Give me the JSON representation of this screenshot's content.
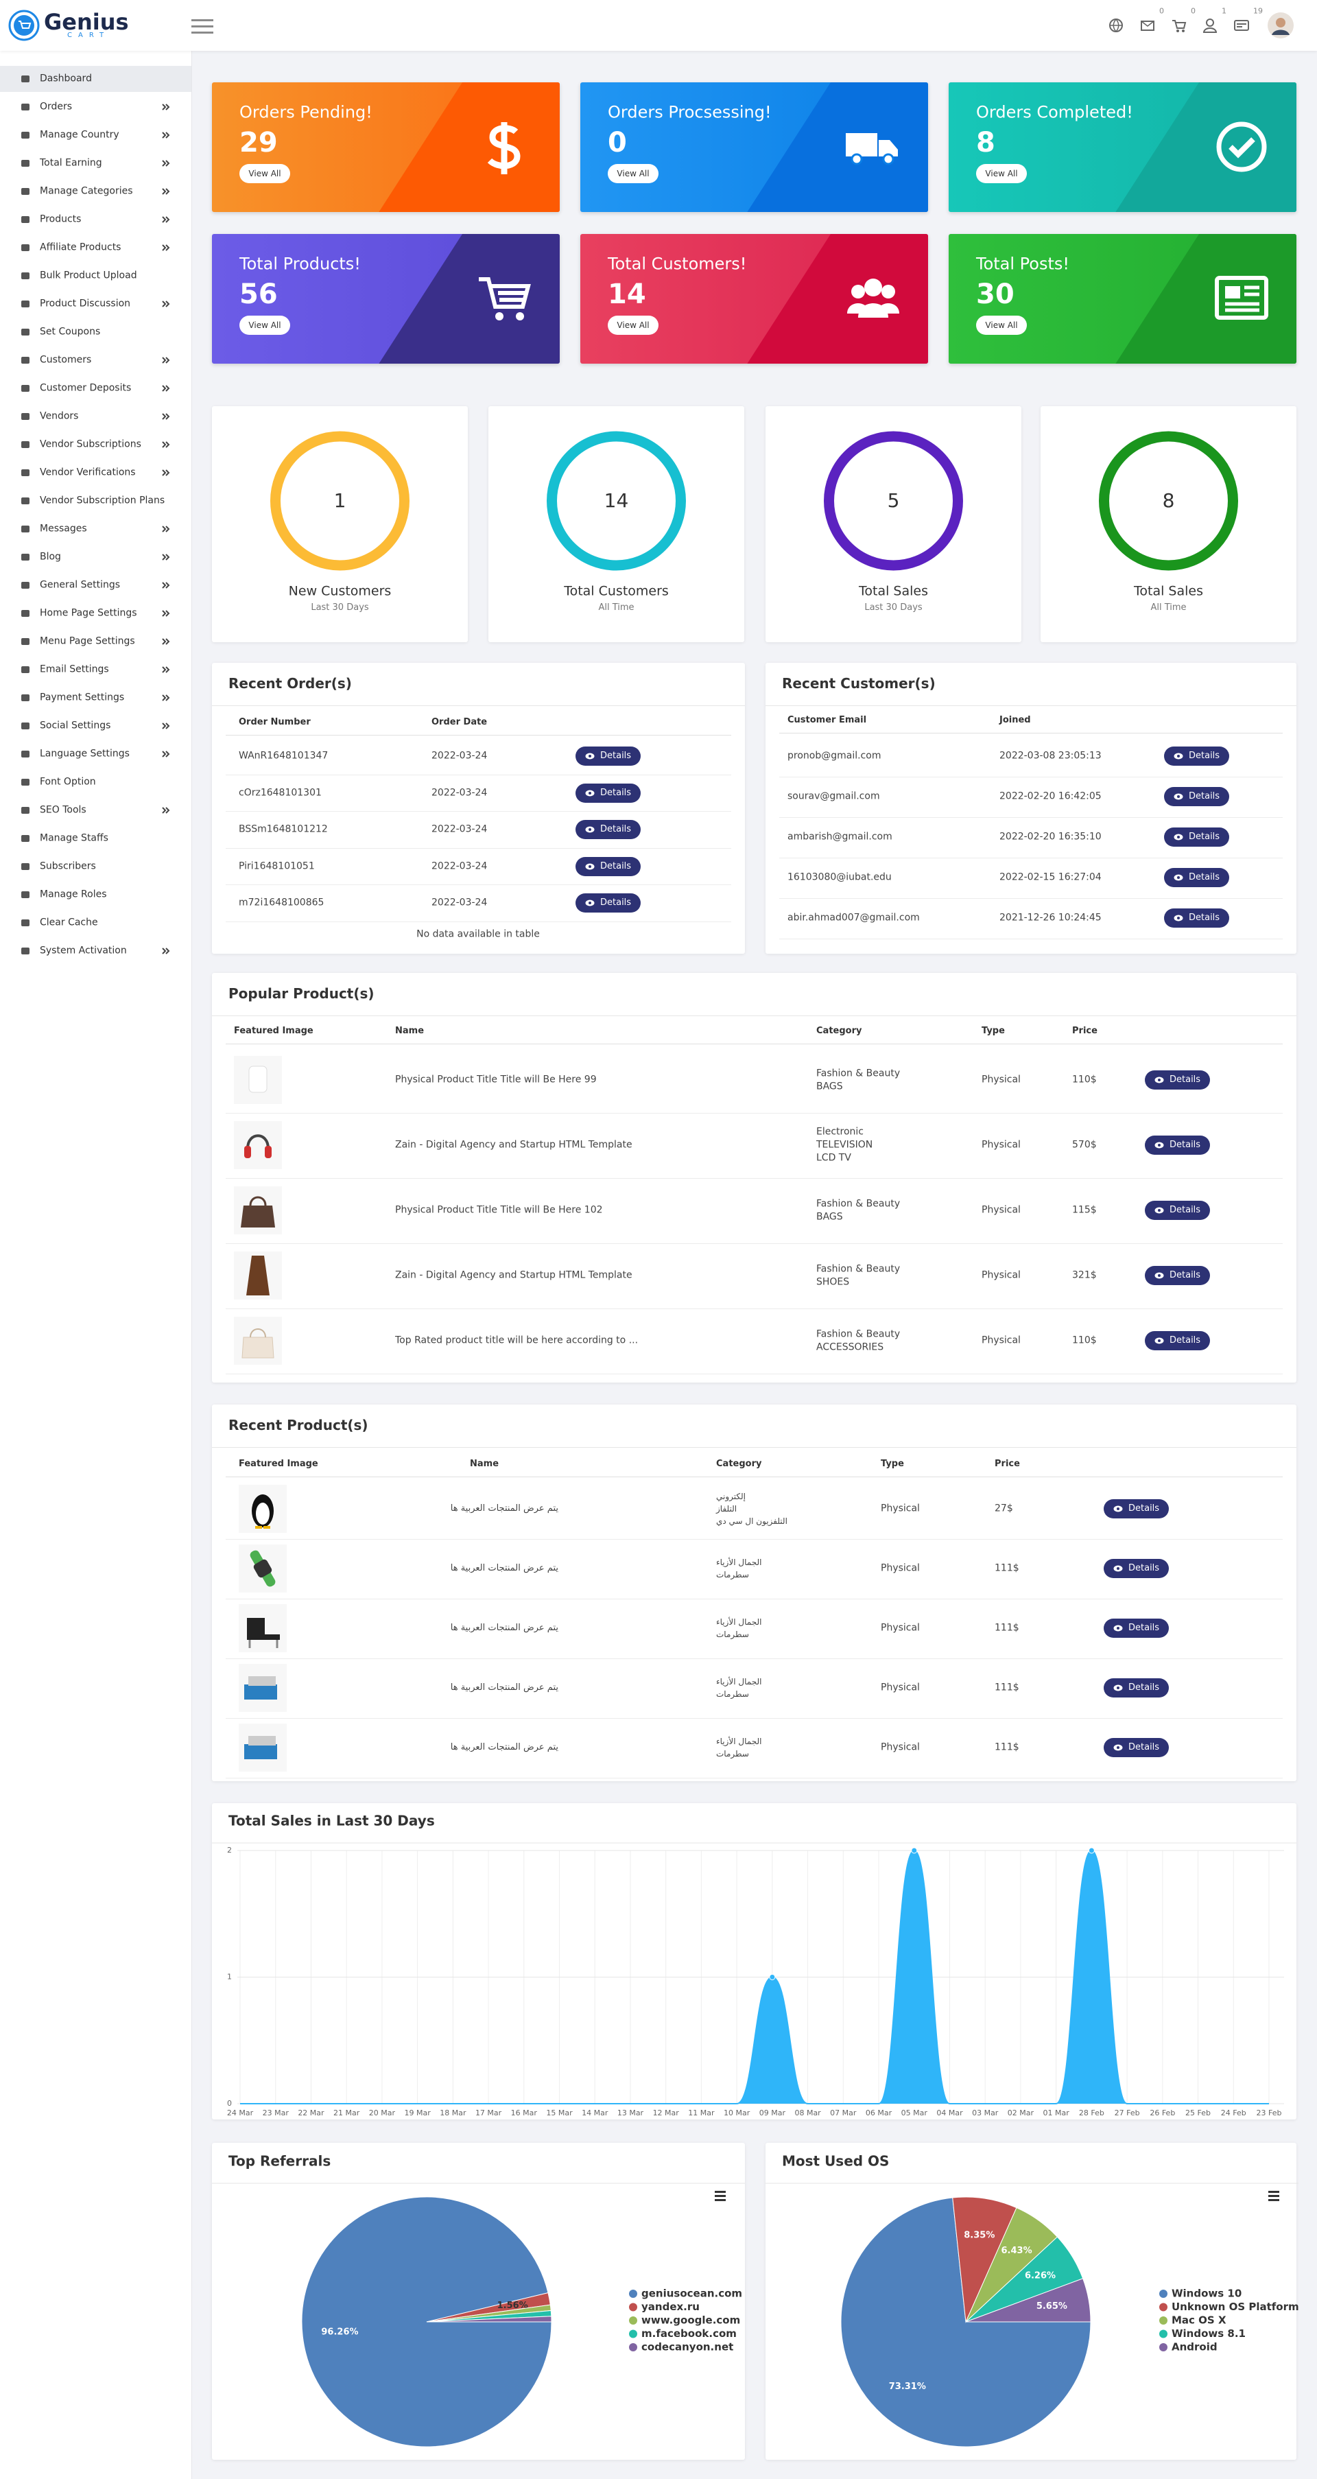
{
  "header": {
    "brand": "Genius",
    "brand_sub": "CART",
    "badges": [
      "0",
      "0",
      "1",
      "19"
    ]
  },
  "sidebar": [
    {
      "label": "Dashboard",
      "submenu": false,
      "active": true
    },
    {
      "label": "Orders",
      "submenu": true
    },
    {
      "label": "Manage Country",
      "submenu": true
    },
    {
      "label": "Total Earning",
      "submenu": true
    },
    {
      "label": "Manage Categories",
      "submenu": true
    },
    {
      "label": "Products",
      "submenu": true
    },
    {
      "label": "Affiliate Products",
      "submenu": true
    },
    {
      "label": "Bulk Product Upload",
      "submenu": false
    },
    {
      "label": "Product Discussion",
      "submenu": true
    },
    {
      "label": "Set Coupons",
      "submenu": false
    },
    {
      "label": "Customers",
      "submenu": true
    },
    {
      "label": "Customer Deposits",
      "submenu": true
    },
    {
      "label": "Vendors",
      "submenu": true
    },
    {
      "label": "Vendor Subscriptions",
      "submenu": true
    },
    {
      "label": "Vendor Verifications",
      "submenu": true
    },
    {
      "label": "Vendor Subscription Plans",
      "submenu": false
    },
    {
      "label": "Messages",
      "submenu": true
    },
    {
      "label": "Blog",
      "submenu": true
    },
    {
      "label": "General Settings",
      "submenu": true
    },
    {
      "label": "Home Page Settings",
      "submenu": true
    },
    {
      "label": "Menu Page Settings",
      "submenu": true
    },
    {
      "label": "Email Settings",
      "submenu": true
    },
    {
      "label": "Payment Settings",
      "submenu": true
    },
    {
      "label": "Social Settings",
      "submenu": true
    },
    {
      "label": "Language Settings",
      "submenu": true
    },
    {
      "label": "Font Option",
      "submenu": false
    },
    {
      "label": "SEO Tools",
      "submenu": true
    },
    {
      "label": "Manage Staffs",
      "submenu": false
    },
    {
      "label": "Subscribers",
      "submenu": false
    },
    {
      "label": "Manage Roles",
      "submenu": false
    },
    {
      "label": "Clear Cache",
      "submenu": false
    },
    {
      "label": "System Activation",
      "submenu": true
    }
  ],
  "cards": [
    {
      "title": "Orders Pending!",
      "value": 29,
      "button": "View All",
      "colors": [
        "#f7922a",
        "#fb6c13",
        "#fd5a03"
      ]
    },
    {
      "title": "Orders Procsessing!",
      "value": 0,
      "button": "View All",
      "colors": [
        "#2196f3",
        "#0b7fe6",
        "#0870de"
      ]
    },
    {
      "title": "Orders Completed!",
      "value": 8,
      "button": "View All",
      "colors": [
        "#17c7b8",
        "#13b3a6",
        "#12a89b"
      ]
    },
    {
      "title": "Total Products!",
      "value": 56,
      "button": "View All",
      "colors": [
        "#6c5ce7",
        "#5b4bd8",
        "#3a2f8a"
      ]
    },
    {
      "title": "Total Customers!",
      "value": 14,
      "button": "View All",
      "colors": [
        "#e8405f",
        "#dc2350",
        "#d10a3c"
      ]
    },
    {
      "title": "Total Posts!",
      "value": 30,
      "button": "View All",
      "colors": [
        "#2fbf3c",
        "#22ad30",
        "#1c9a29"
      ]
    }
  ],
  "stats": [
    {
      "value": 1,
      "label": "New Customers",
      "sub": "Last 30 Days",
      "color": "#fcbb35"
    },
    {
      "value": 14,
      "label": "Total Customers",
      "sub": "All Time",
      "color": "#17bfd1"
    },
    {
      "value": 5,
      "label": "Total Sales",
      "sub": "Last 30 Days",
      "color": "#5b22c0"
    },
    {
      "value": 8,
      "label": "Total Sales",
      "sub": "All Time",
      "color": "#1a951d"
    }
  ],
  "recent_orders": {
    "title": "Recent Order(s)",
    "columns": [
      "Order Number",
      "Order Date"
    ],
    "action": "Details",
    "empty": "No data available in table",
    "rows": [
      [
        "WAnR1648101347",
        "2022-03-24"
      ],
      [
        "cOrz1648101301",
        "2022-03-24"
      ],
      [
        "BSSm1648101212",
        "2022-03-24"
      ],
      [
        "Piri1648101051",
        "2022-03-24"
      ],
      [
        "m72i1648100865",
        "2022-03-24"
      ]
    ]
  },
  "recent_customers": {
    "title": "Recent Customer(s)",
    "columns": [
      "Customer Email",
      "Joined"
    ],
    "action": "Details",
    "rows": [
      [
        "pronob@gmail.com",
        "2022-03-08 23:05:13"
      ],
      [
        "sourav@gmail.com",
        "2022-02-20 16:42:05"
      ],
      [
        "ambarish@gmail.com",
        "2022-02-20 16:35:10"
      ],
      [
        "16103080@iubat.edu",
        "2022-02-15 16:27:04"
      ],
      [
        "abir.ahmad007@gmail.com",
        "2021-12-26 10:24:45"
      ]
    ]
  },
  "popular_products": {
    "title": "Popular Product(s)",
    "columns": [
      "Featured Image",
      "Name",
      "Category",
      "Type",
      "Price"
    ],
    "action": "Details",
    "rows": [
      {
        "name": "Physical Product Title Title will Be Here 99",
        "category": [
          "Fashion & Beauty",
          "BAGS"
        ],
        "type": "Physical",
        "price": "110$"
      },
      {
        "name": "Zain - Digital Agency and Startup HTML Template",
        "category": [
          "Electronic",
          "TELEVISION",
          "LCD TV"
        ],
        "type": "Physical",
        "price": "570$"
      },
      {
        "name": "Physical Product Title Title will Be Here 102",
        "category": [
          "Fashion & Beauty",
          "BAGS"
        ],
        "type": "Physical",
        "price": "115$"
      },
      {
        "name": "Zain - Digital Agency and Startup HTML Template",
        "category": [
          "Fashion & Beauty",
          "SHOES"
        ],
        "type": "Physical",
        "price": "321$"
      },
      {
        "name": "Top Rated product title will be here according to ...",
        "category": [
          "Fashion & Beauty",
          "ACCESSORIES"
        ],
        "type": "Physical",
        "price": "110$"
      }
    ]
  },
  "recent_products": {
    "title": "Recent Product(s)",
    "columns": [
      "Featured Image",
      "Name",
      "Category",
      "Type",
      "Price"
    ],
    "action": "Details",
    "rows": [
      {
        "name": "يتم عرض المنتجات العربية ها",
        "category": [
          "إلكتروني",
          "التلفاز",
          "التلفزيون ال سي دي"
        ],
        "type": "Physical",
        "price": "27$"
      },
      {
        "name": "يتم عرض المنتجات العربية ها",
        "category": [
          "الجمال الأزياء",
          "سطرمات"
        ],
        "type": "Physical",
        "price": "111$"
      },
      {
        "name": "يتم عرض المنتجات العربية ها",
        "category": [
          "الجمال الأزياء",
          "سطرمات"
        ],
        "type": "Physical",
        "price": "111$"
      },
      {
        "name": "يتم عرض المنتجات العربية ها",
        "category": [
          "الجمال الأزياء",
          "سطرمات"
        ],
        "type": "Physical",
        "price": "111$"
      },
      {
        "name": "يتم عرض المنتجات العربية ها",
        "category": [
          "الجمال الأزياء",
          "سطرمات"
        ],
        "type": "Physical",
        "price": "111$"
      }
    ]
  },
  "chart_data": [
    {
      "type": "area",
      "title": "Total Sales in Last 30 Days",
      "color": "#2fb5f9",
      "categories": [
        "24 Mar",
        "23 Mar",
        "22 Mar",
        "21 Mar",
        "20 Mar",
        "19 Mar",
        "18 Mar",
        "17 Mar",
        "16 Mar",
        "15 Mar",
        "14 Mar",
        "13 Mar",
        "12 Mar",
        "11 Mar",
        "10 Mar",
        "09 Mar",
        "08 Mar",
        "07 Mar",
        "06 Mar",
        "05 Mar",
        "04 Mar",
        "03 Mar",
        "02 Mar",
        "01 Mar",
        "28 Feb",
        "27 Feb",
        "26 Feb",
        "25 Feb",
        "24 Feb",
        "23 Feb"
      ],
      "values": [
        0,
        0,
        0,
        0,
        0,
        0,
        0,
        0,
        0,
        0,
        0,
        0,
        0,
        0,
        0,
        1,
        0,
        0,
        0,
        2,
        0,
        0,
        0,
        0,
        2,
        0,
        0,
        0,
        0,
        0
      ],
      "ylim": [
        0,
        2
      ],
      "yticks": [
        0,
        1,
        2
      ],
      "grid": true
    },
    {
      "type": "pie",
      "title": "Top Referrals",
      "categories": [
        "geniusocean.com",
        "yandex.ru",
        "www.google.com",
        "m.facebook.com",
        "codecanyon.net"
      ],
      "values": [
        96.26,
        1.56,
        0.73,
        0.73,
        0.72
      ],
      "value_labels": [
        "96.26%",
        "1.56%",
        null,
        null,
        null
      ],
      "colors": [
        "#4f81bd",
        "#c0504d",
        "#9bbb59",
        "#23bfaa",
        "#8064a2"
      ]
    },
    {
      "type": "pie",
      "title": "Most Used OS",
      "categories": [
        "Windows 10",
        "Unknown OS Platform",
        "Mac OS X",
        "Windows 8.1",
        "Android"
      ],
      "values": [
        73.31,
        8.35,
        6.43,
        6.26,
        5.65
      ],
      "value_labels": [
        "73.31%",
        "8.35%",
        "6.43%",
        "6.26%",
        "5.65%"
      ],
      "colors": [
        "#4f81bd",
        "#c0504d",
        "#9bbb59",
        "#23bfaa",
        "#8064a2"
      ]
    }
  ]
}
